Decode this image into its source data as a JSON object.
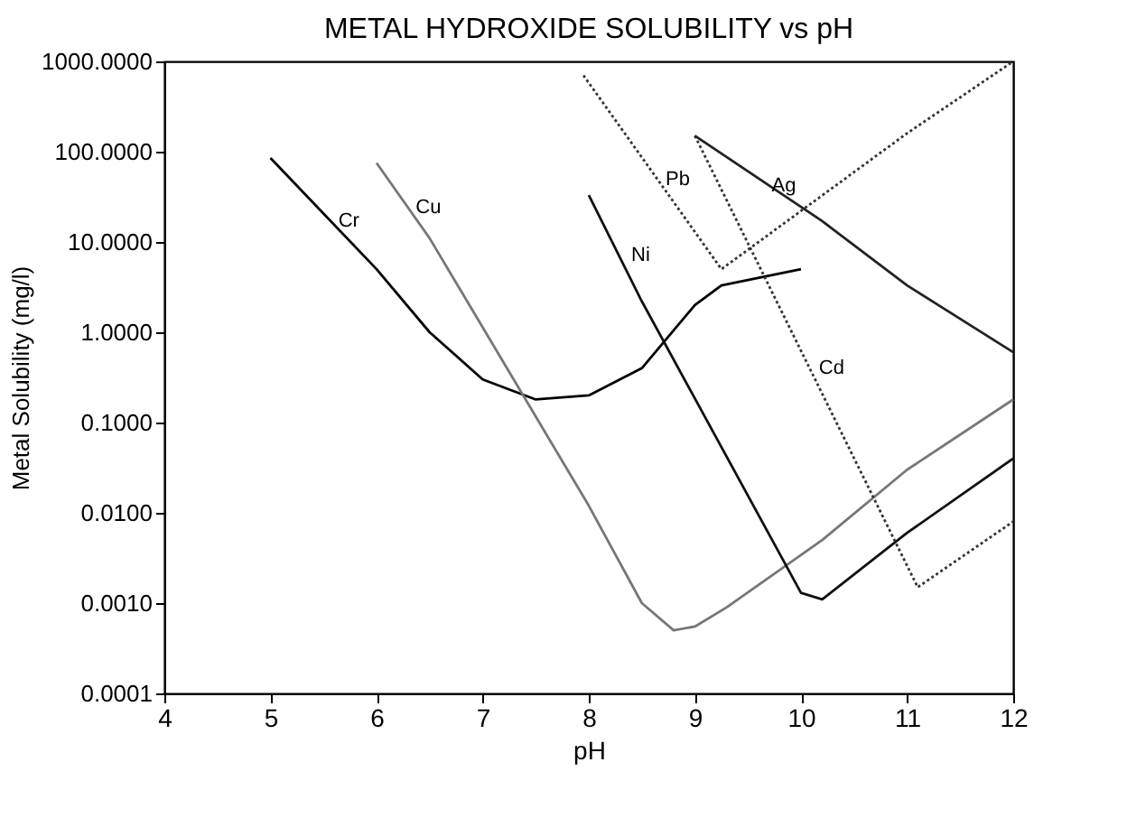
{
  "chart_data": {
    "type": "line",
    "title": "METAL HYDROXIDE SOLUBILITY vs pH",
    "xlabel": "pH",
    "ylabel": "Metal Solubility (mg/l)",
    "log": "y",
    "grid": false,
    "marker": "none",
    "xlim": [
      4,
      12
    ],
    "xticks": [
      4,
      5,
      6,
      7,
      8,
      9,
      10,
      11,
      12
    ],
    "ylim": [
      0.0001,
      1000
    ],
    "yticks": [
      {
        "value": 1000,
        "label": "1000.0000"
      },
      {
        "value": 100,
        "label": "100.0000"
      },
      {
        "value": 10,
        "label": "10.0000"
      },
      {
        "value": 1,
        "label": "1.0000"
      },
      {
        "value": 0.1,
        "label": "0.1000"
      },
      {
        "value": 0.01,
        "label": "0.0100"
      },
      {
        "value": 0.001,
        "label": "0.0010"
      },
      {
        "value": 0.0001,
        "label": "0.0001"
      }
    ],
    "series": [
      {
        "name": "Cr",
        "color": "#000000",
        "line_style": "solid",
        "x": [
          5,
          6,
          6.5,
          7,
          7.5,
          8,
          8.5,
          9,
          9.25,
          10
        ],
        "values": [
          85,
          5,
          1.0,
          0.3,
          0.18,
          0.2,
          0.4,
          2,
          3.3,
          5
        ]
      },
      {
        "name": "Cu",
        "color": "#777777",
        "line_style": "solid",
        "x": [
          6,
          6.5,
          8,
          8.5,
          8.8,
          9,
          9.3,
          10.2,
          11,
          12
        ],
        "values": [
          75,
          11,
          0.012,
          0.001,
          0.0005,
          0.00055,
          0.0009,
          0.005,
          0.03,
          0.18
        ]
      },
      {
        "name": "Ni",
        "color": "#111111",
        "line_style": "solid",
        "x": [
          8,
          8.5,
          10,
          10.2,
          11,
          12
        ],
        "values": [
          33,
          2.2,
          0.0013,
          0.0011,
          0.006,
          0.04
        ]
      },
      {
        "name": "Pb",
        "color": "#333333",
        "line_style": "dotted",
        "x": [
          7.95,
          9.25,
          11,
          12
        ],
        "values": [
          700,
          5,
          160,
          1000
        ]
      },
      {
        "name": "Cd",
        "color": "#333333",
        "line_style": "dotted",
        "x": [
          9,
          11.1,
          12
        ],
        "values": [
          150,
          0.0015,
          0.008
        ]
      },
      {
        "name": "Ag",
        "color": "#222222",
        "line_style": "solid",
        "x": [
          9,
          10.2,
          11,
          12
        ],
        "values": [
          150,
          17,
          3.3,
          0.6
        ]
      }
    ]
  }
}
